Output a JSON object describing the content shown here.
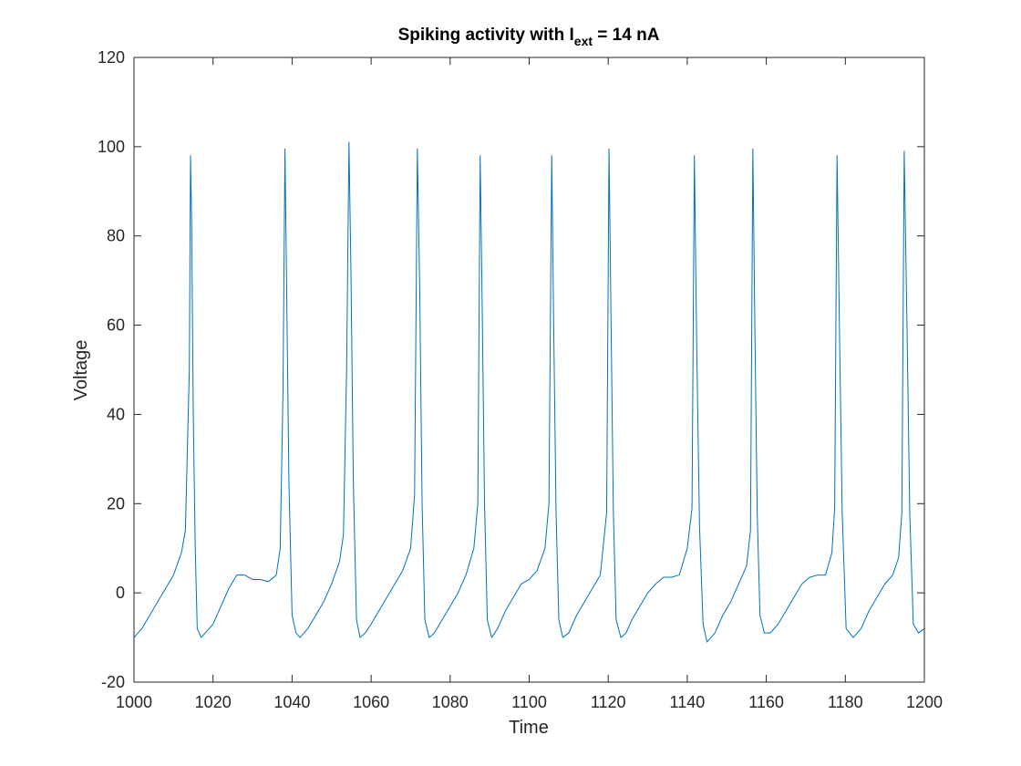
{
  "chart_data": {
    "type": "line",
    "title": {
      "prefix": "Spiking activity with I",
      "subscript": "ext",
      "suffix": " = 14 nA"
    },
    "xlabel": "Time",
    "ylabel": "Voltage",
    "xlim": [
      1000,
      1200
    ],
    "ylim": [
      -20,
      120
    ],
    "x_ticks": [
      1000,
      1020,
      1040,
      1060,
      1080,
      1100,
      1120,
      1140,
      1160,
      1180,
      1200
    ],
    "y_ticks": [
      -20,
      0,
      20,
      40,
      60,
      80,
      100,
      120
    ],
    "x_tick_labels": [
      "1000",
      "1020",
      "1040",
      "1060",
      "1080",
      "1100",
      "1120",
      "1140",
      "1160",
      "1180",
      "1200"
    ],
    "y_tick_labels": [
      "-20",
      "0",
      "20",
      "40",
      "60",
      "80",
      "100",
      "120"
    ],
    "grid": false,
    "line_color": "#0072BD",
    "series": [
      {
        "x": [
          1000,
          1002,
          1004,
          1006,
          1008,
          1010,
          1012,
          1013,
          1014,
          1014.3,
          1014.6,
          1015,
          1015.5,
          1016,
          1017,
          1018,
          1020,
          1022,
          1024,
          1026,
          1028,
          1030,
          1032,
          1034,
          1036,
          1037,
          1037.7,
          1038.2,
          1038.6,
          1039.2,
          1040,
          1041,
          1042,
          1044,
          1046,
          1048,
          1050,
          1052,
          1053,
          1053.8,
          1054.4,
          1054.9,
          1055.5,
          1056.3,
          1057.2,
          1058.5,
          1060,
          1062,
          1064,
          1066,
          1068,
          1070,
          1071,
          1071.7,
          1072.3,
          1072.9,
          1073.6,
          1074.7,
          1076,
          1078,
          1080,
          1082,
          1084,
          1086,
          1087,
          1087.6,
          1088.1,
          1088.7,
          1089.4,
          1090.5,
          1092,
          1094,
          1096,
          1098,
          1100,
          1102,
          1104,
          1105,
          1105.7,
          1106.2,
          1106.8,
          1107.5,
          1108.5,
          1110,
          1112,
          1114,
          1116,
          1118,
          1119.6,
          1120.2,
          1120.7,
          1121.3,
          1122,
          1123.2,
          1124.5,
          1126,
          1128,
          1130,
          1132,
          1134,
          1136,
          1138,
          1140,
          1141.2,
          1141.8,
          1142.4,
          1143.1,
          1144,
          1145,
          1147,
          1149,
          1151,
          1153,
          1155,
          1156,
          1156.6,
          1157.1,
          1157.7,
          1158.4,
          1159.5,
          1161,
          1163,
          1165,
          1167,
          1169,
          1171,
          1173,
          1175,
          1176.6,
          1177.3,
          1177.9,
          1178.5,
          1179.2,
          1180.2,
          1182,
          1184,
          1186,
          1188,
          1190,
          1192,
          1193.5,
          1194.3,
          1194.9,
          1195.6,
          1196.3,
          1197.2,
          1198.5,
          1200
        ],
        "y": [
          -10,
          -8,
          -5,
          -2,
          1,
          4,
          9,
          14,
          50,
          98,
          82,
          40,
          10,
          -8,
          -10,
          -9,
          -7,
          -3,
          1,
          4,
          4,
          3,
          3,
          2.5,
          4,
          10,
          45,
          99.5,
          70,
          25,
          -5,
          -9,
          -10,
          -8,
          -5,
          -2,
          2,
          7,
          13,
          50,
          101,
          72,
          25,
          -6,
          -10,
          -9,
          -7,
          -4,
          -1,
          2,
          5,
          10,
          22,
          99.5,
          68,
          20,
          -6,
          -10,
          -9,
          -6,
          -3,
          0,
          4,
          10,
          20,
          98,
          65,
          20,
          -6,
          -10,
          -8,
          -4,
          -1,
          2,
          3,
          5,
          10,
          20,
          98,
          60,
          18,
          -6,
          -10,
          -9,
          -5,
          -2,
          1,
          4,
          18,
          99.5,
          62,
          18,
          -6,
          -10,
          -9,
          -6,
          -3,
          0,
          2,
          3.5,
          3.5,
          4,
          10,
          19,
          98,
          55,
          15,
          -7,
          -11,
          -9,
          -5,
          -2,
          2,
          6,
          14,
          99.5,
          60,
          18,
          -5,
          -9,
          -9,
          -7,
          -4,
          -1,
          2,
          3.5,
          4,
          4,
          9,
          19,
          98,
          60,
          18,
          -8,
          -10,
          -8,
          -4,
          -1,
          2,
          4,
          8,
          18,
          99,
          60,
          18,
          -7,
          -9,
          -8
        ]
      }
    ]
  }
}
